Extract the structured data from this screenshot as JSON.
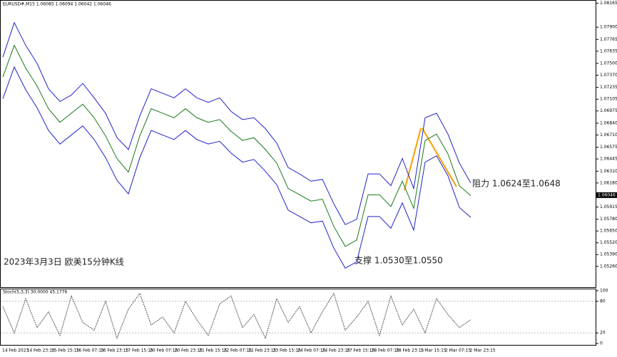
{
  "chart_data": [
    {
      "type": "line",
      "header": "EURUSD#,M15 1.06085 1.06094 1.06042 1.06046",
      "annotations": [
        "阻力 1.0624至1.0648",
        "支撑 1.0530至1.0550",
        "2023年3月3日 欧美15分钟K线"
      ],
      "xtick_labels": [
        "14 Feb 2023",
        "14 Feb 23:15",
        "15 Feb 15:15",
        "16 Feb 07:15",
        "16 Feb 23:15",
        "17 Feb 15:15",
        "20 Feb 07:15",
        "20 Feb 23:15",
        "21 Feb 15:15",
        "22 Feb 07:15",
        "22 Feb 23:15",
        "23 Feb 15:15",
        "24 Feb 07:15",
        "24 Feb 23:15",
        "27 Feb 15:15",
        "28 Feb 07:15",
        "28 Feb 23:15",
        "1 Mar 15:15",
        "2 Mar 07:15",
        "2 Mar 23:15"
      ],
      "ylim": [
        1.0503,
        1.082
      ],
      "yticks": [
        {
          "value": 1.08165,
          "label": "1.08165"
        },
        {
          "value": 1.079,
          "label": "1.07900"
        },
        {
          "value": 1.07765,
          "label": "1.07765"
        },
        {
          "value": 1.07635,
          "label": "1.07635"
        },
        {
          "value": 1.075,
          "label": "1.07500"
        },
        {
          "value": 1.0737,
          "label": "1.07370"
        },
        {
          "value": 1.07235,
          "label": "1.07235"
        },
        {
          "value": 1.07105,
          "label": "1.07105"
        },
        {
          "value": 1.06975,
          "label": "1.06975"
        },
        {
          "value": 1.0684,
          "label": "1.06840"
        },
        {
          "value": 1.0671,
          "label": "1.06710"
        },
        {
          "value": 1.06575,
          "label": "1.06575"
        },
        {
          "value": 1.06445,
          "label": "1.06445"
        },
        {
          "value": 1.0631,
          "label": "1.06310"
        },
        {
          "value": 1.0618,
          "label": "1.06180"
        },
        {
          "value": 1.05915,
          "label": "1.05915"
        },
        {
          "value": 1.0578,
          "label": "1.05780"
        },
        {
          "value": 1.0565,
          "label": "1.05650"
        },
        {
          "value": 1.0552,
          "label": "1.05520"
        },
        {
          "value": 1.0539,
          "label": "1.05390"
        },
        {
          "value": 1.0526,
          "label": "1.05260"
        }
      ],
      "last_price": {
        "value": 1.06046,
        "label": "1.06046"
      },
      "series": [
        {
          "color": "#1a7a1a",
          "values": [
            1.0735,
            1.077,
            1.0745,
            1.0725,
            1.07,
            1.0685,
            1.0695,
            1.0705,
            1.069,
            1.067,
            1.0645,
            1.063,
            1.067,
            1.07,
            1.0695,
            1.069,
            1.07,
            1.069,
            1.0685,
            1.0688,
            1.0675,
            1.0665,
            1.0668,
            1.0655,
            1.064,
            1.0612,
            1.0605,
            1.0598,
            1.06,
            1.057,
            1.0548,
            1.0555,
            1.0605,
            1.0605,
            1.0592,
            1.062,
            1.059,
            1.0665,
            1.0672,
            1.065,
            1.0615,
            1.0604
          ]
        },
        {
          "color": "#2222cc",
          "values": [
            1.0757,
            1.0795,
            1.077,
            1.075,
            1.0722,
            1.0708,
            1.0715,
            1.0728,
            1.0712,
            1.0695,
            1.0668,
            1.0655,
            1.0692,
            1.0722,
            1.0717,
            1.0712,
            1.0722,
            1.0712,
            1.0707,
            1.0712,
            1.0697,
            1.0688,
            1.069,
            1.0678,
            1.0662,
            1.0635,
            1.0628,
            1.062,
            1.0622,
            1.0595,
            1.0572,
            1.0578,
            1.0628,
            1.0628,
            1.0615,
            1.0645,
            1.0612,
            1.069,
            1.0695,
            1.0672,
            1.064,
            1.0618
          ]
        },
        {
          "color": "#2222cc",
          "values": [
            1.0711,
            1.0746,
            1.0721,
            1.0701,
            1.0676,
            1.0661,
            1.0671,
            1.0681,
            1.0666,
            1.0646,
            1.0621,
            1.0606,
            1.0646,
            1.0676,
            1.0671,
            1.0666,
            1.0676,
            1.0666,
            1.0661,
            1.0664,
            1.0651,
            1.0641,
            1.0644,
            1.0631,
            1.0616,
            1.0588,
            1.0581,
            1.0574,
            1.0576,
            1.0546,
            1.0524,
            1.0531,
            1.0581,
            1.0581,
            1.0568,
            1.0596,
            1.0566,
            1.0641,
            1.0648,
            1.0626,
            1.0591,
            1.058
          ]
        }
      ]
    },
    {
      "type": "line",
      "header": "Stoch(5,3,3) 30.0000 45.1776",
      "ylim": [
        0,
        100
      ],
      "yticks": [
        100,
        80,
        20,
        0
      ],
      "series": [
        {
          "color": "#555555",
          "values": [
            70,
            20,
            85,
            30,
            60,
            15,
            90,
            40,
            25,
            80,
            10,
            65,
            95,
            35,
            50,
            20,
            80,
            45,
            15,
            75,
            90,
            30,
            55,
            10,
            85,
            40,
            70,
            20,
            60,
            95,
            25,
            50,
            80,
            15,
            90,
            35,
            65,
            20,
            85,
            55,
            30,
            45
          ]
        }
      ]
    }
  ]
}
